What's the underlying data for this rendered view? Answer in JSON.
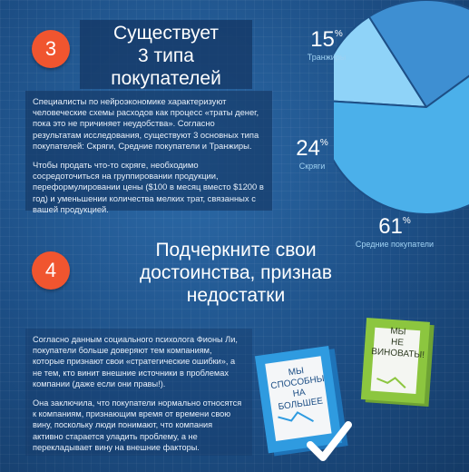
{
  "section1": {
    "number": "3",
    "title_lines": [
      "Существует",
      "3 типа",
      "покупателей"
    ],
    "paragraph1": "Специалисты по нейроэкономике характеризуют человеческие схемы расходов как процесс «траты денег, пока это не причиняет неудобства». Согласно результатам исследования, существуют 3 основных типа покупателей: Скряги, Средние покупатели и Транжиры.",
    "paragraph2": "Чтобы продать что-то скряге, необходимо сосредоточиться на группировании продукции, переформулировании цены ($100 в месяц вместо $1200 в год) и уменьшении количества мелких трат, связанных с вашей продукцией."
  },
  "chart_data": {
    "type": "pie",
    "slices": [
      {
        "label": "Транжиры",
        "value": 15,
        "color": "#8fd3f8"
      },
      {
        "label": "Скряги",
        "value": 24,
        "color": "#3e8fd2"
      },
      {
        "label": "Средние покупатели",
        "value": 61,
        "color": "#4bb0ea"
      }
    ],
    "percent_sign": "%"
  },
  "section2": {
    "number": "4",
    "title_lines": [
      "Подчеркните свои",
      "достоинства, признав",
      "недостатки"
    ],
    "paragraph1": "Согласно данным социального психолога Фионы Ли, покупатели больше доверяют тем компаниям, которые признают свои «стратегические ошибки», а не тем, кто винит внешние источники в проблемах компании (даже если они правы!).",
    "paragraph2": "Она заключила, что покупатели нормально относятся к компаниям, признающим время от времени свою вину, поскольку люди понимают, что компания активно старается уладить проблему, а не перекладывает вину на внешние факторы."
  },
  "docs": {
    "blue_lines": [
      "МЫ СПОСОБНЫ",
      "НА",
      "БОЛЬШЕЕ"
    ],
    "green_lines": [
      "МЫ",
      "НЕ",
      "ВИНОВАТЫ!"
    ],
    "colors": {
      "blue": "#2f9be0",
      "green": "#8cc63f",
      "check": "#ffffff"
    }
  }
}
